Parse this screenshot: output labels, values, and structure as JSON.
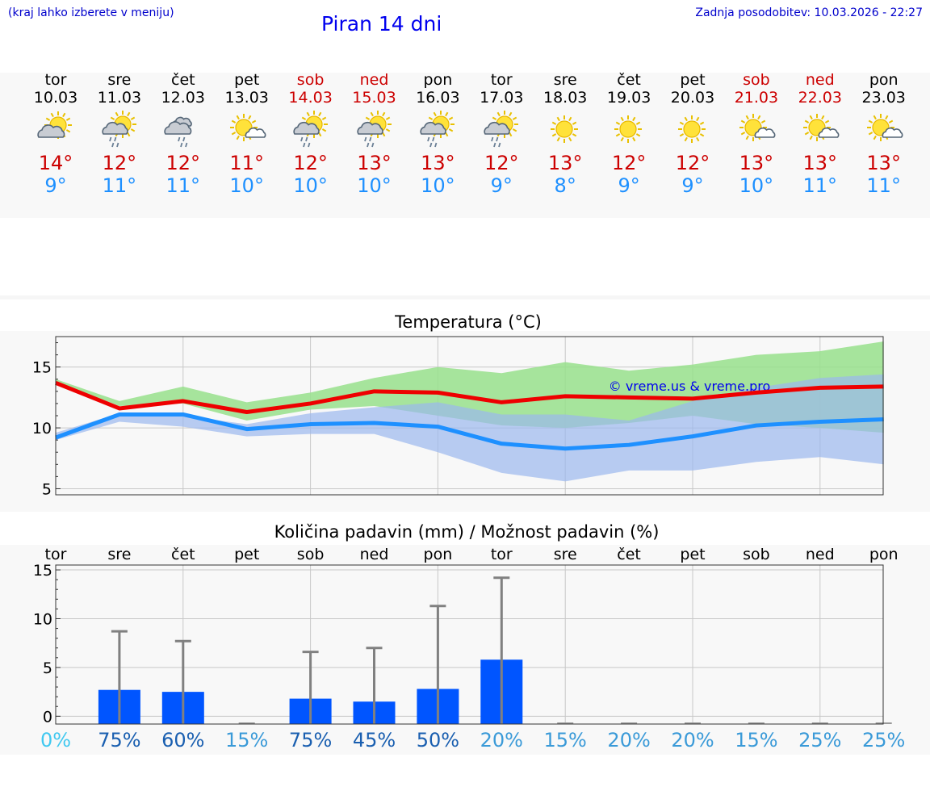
{
  "header": {
    "hint": "(kraj lahko izberete v meniju)",
    "title": "Piran 14 dni",
    "updated": "Zadnja posodobitev: 10.03.2026 - 22:27"
  },
  "days": [
    {
      "name": "tor",
      "date": "10.03",
      "weekend": false,
      "icon": "sun-cloud-icon",
      "max": "14°",
      "min": "9°"
    },
    {
      "name": "sre",
      "date": "11.03",
      "weekend": false,
      "icon": "sun-cloud-rain-icon",
      "max": "12°",
      "min": "11°"
    },
    {
      "name": "čet",
      "date": "12.03",
      "weekend": false,
      "icon": "cloud-rain-icon",
      "max": "12°",
      "min": "11°"
    },
    {
      "name": "pet",
      "date": "13.03",
      "weekend": false,
      "icon": "sun-small-cloud-icon",
      "max": "11°",
      "min": "10°"
    },
    {
      "name": "sob",
      "date": "14.03",
      "weekend": true,
      "icon": "sun-cloud-rain-icon",
      "max": "12°",
      "min": "10°"
    },
    {
      "name": "ned",
      "date": "15.03",
      "weekend": true,
      "icon": "sun-cloud-rain-icon",
      "max": "13°",
      "min": "10°"
    },
    {
      "name": "pon",
      "date": "16.03",
      "weekend": false,
      "icon": "sun-cloud-rain-icon",
      "max": "13°",
      "min": "10°"
    },
    {
      "name": "tor",
      "date": "17.03",
      "weekend": false,
      "icon": "sun-cloud-rain-icon",
      "max": "12°",
      "min": "9°"
    },
    {
      "name": "sre",
      "date": "18.03",
      "weekend": false,
      "icon": "sun-icon",
      "max": "13°",
      "min": "8°"
    },
    {
      "name": "čet",
      "date": "19.03",
      "weekend": false,
      "icon": "sun-icon",
      "max": "12°",
      "min": "9°"
    },
    {
      "name": "pet",
      "date": "20.03",
      "weekend": false,
      "icon": "sun-icon",
      "max": "12°",
      "min": "9°"
    },
    {
      "name": "sob",
      "date": "21.03",
      "weekend": true,
      "icon": "sun-small-cloud-icon",
      "max": "13°",
      "min": "10°"
    },
    {
      "name": "ned",
      "date": "22.03",
      "weekend": true,
      "icon": "sun-small-cloud-icon",
      "max": "13°",
      "min": "11°"
    },
    {
      "name": "pon",
      "date": "23.03",
      "weekend": false,
      "icon": "sun-small-cloud-icon",
      "max": "13°",
      "min": "11°"
    }
  ],
  "colors": {
    "max": "#cc0000",
    "min": "#1e90ff",
    "maxLine": "#ee0000",
    "minLine": "#1e90ff",
    "maxBand": "#98e08c",
    "minBand": "#9bb8ee",
    "overlap": "#6fb8a0",
    "bar": "#0055ff",
    "whisker": "#808080",
    "chanceLow": "#40c8f0",
    "chanceMid": "#3a9ad8",
    "chanceHigh": "#1a5fb0"
  },
  "chart_data": [
    {
      "type": "line",
      "title": "Temperatura (°C)",
      "watermark": "© vreme.us & vreme.pro",
      "x": [
        0,
        1,
        2,
        3,
        4,
        5,
        6,
        7,
        8,
        9,
        10,
        11,
        12,
        13
      ],
      "ylim": [
        4.5,
        17.5
      ],
      "yticks": [
        5,
        10,
        15
      ],
      "series": [
        {
          "name": "max",
          "values": [
            13.7,
            11.6,
            12.2,
            11.3,
            12.0,
            13.0,
            12.9,
            12.1,
            12.6,
            12.5,
            12.4,
            12.9,
            13.3,
            13.4
          ]
        },
        {
          "name": "min",
          "values": [
            9.2,
            11.1,
            11.1,
            9.9,
            10.3,
            10.4,
            10.1,
            8.7,
            8.3,
            8.6,
            9.3,
            10.2,
            10.5,
            10.7
          ]
        }
      ],
      "bands": [
        {
          "name": "max_range",
          "low": [
            13.8,
            11.8,
            12.0,
            10.6,
            11.5,
            11.8,
            11.0,
            10.2,
            10.0,
            10.4,
            11.0,
            10.3,
            10.0,
            9.6
          ],
          "high": [
            14.0,
            12.2,
            13.4,
            12.1,
            12.9,
            14.1,
            15.0,
            14.5,
            15.4,
            14.7,
            15.2,
            16.0,
            16.3,
            17.1
          ]
        },
        {
          "name": "min_range",
          "low": [
            9.0,
            10.5,
            10.1,
            9.3,
            9.5,
            9.5,
            8.0,
            6.3,
            5.6,
            6.5,
            6.5,
            7.2,
            7.6,
            7.0
          ],
          "high": [
            9.6,
            11.2,
            11.0,
            10.3,
            11.2,
            11.7,
            12.1,
            11.1,
            11.1,
            10.6,
            12.2,
            13.3,
            14.1,
            14.4
          ]
        }
      ]
    },
    {
      "type": "bar",
      "title": "Količina padavin (mm) / Možnost padavin (%)",
      "categories": [
        "tor",
        "sre",
        "čet",
        "pet",
        "sob",
        "ned",
        "pon",
        "tor",
        "sre",
        "čet",
        "pet",
        "sob",
        "ned",
        "pon"
      ],
      "ylim": [
        -0.8,
        15.5
      ],
      "yticks": [
        0,
        5,
        10,
        15
      ],
      "values": [
        0,
        2.7,
        2.5,
        0,
        1.8,
        1.5,
        2.8,
        5.8,
        0,
        0,
        0,
        0,
        0,
        0
      ],
      "max_values": [
        0,
        8.7,
        7.7,
        0,
        6.6,
        7.0,
        11.3,
        14.2,
        0,
        0,
        0,
        0,
        0,
        0
      ],
      "chance": [
        "0%",
        "75%",
        "60%",
        "15%",
        "75%",
        "45%",
        "50%",
        "20%",
        "15%",
        "20%",
        "20%",
        "15%",
        "25%",
        "25%"
      ]
    }
  ]
}
